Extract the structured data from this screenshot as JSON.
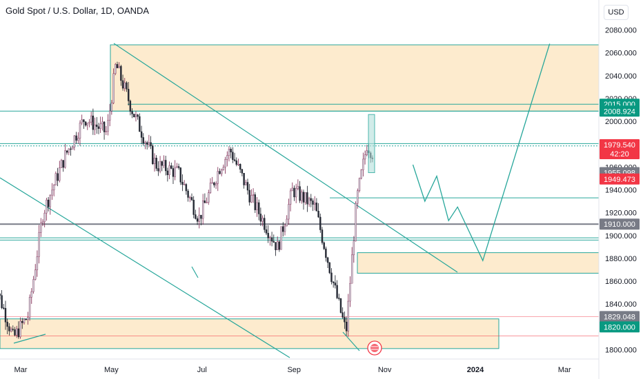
{
  "header": {
    "title": "Gold Spot / U.S. Dollar, 1D, OANDA",
    "currency": "USD"
  },
  "chart_data": {
    "type": "candlestick",
    "symbol": "Gold Spot / U.S. Dollar",
    "interval": "1D",
    "source": "OANDA",
    "ylim": [
      1792,
      2093
    ],
    "y_ticks": [
      2080,
      2060,
      2040,
      2020,
      2000,
      1980,
      1960,
      1940,
      1920,
      1900,
      1880,
      1860,
      1840,
      1820,
      1800
    ],
    "y_tick_labels": [
      "2080.000",
      "2060.000",
      "2040.000",
      "2020.000",
      "2000.000",
      "1980.000",
      "1960.000",
      "1940.000",
      "1920.000",
      "1900.000",
      "1880.000",
      "1860.000",
      "1840.000",
      "1820.000",
      "1800.000"
    ],
    "x_ticks": [
      "Mar",
      "May",
      "Jul",
      "Sep",
      "Nov",
      "2024",
      "Mar"
    ],
    "price_tags": [
      {
        "label": "2015.000",
        "value": 2015.0,
        "color": "#089981"
      },
      {
        "label": "2008.924",
        "value": 2008.924,
        "color": "#089981"
      },
      {
        "label": "1979.540",
        "value": 1979.54,
        "color": "#f23645",
        "sub": "42:20"
      },
      {
        "label": "1955.098",
        "value": 1955.098,
        "color": "#787b86"
      },
      {
        "label": "1949.473",
        "value": 1949.473,
        "color": "#f23645"
      },
      {
        "label": "1910.000",
        "value": 1910.0,
        "color": "#787b86"
      },
      {
        "label": "1829.048",
        "value": 1829.048,
        "color": "#787b86"
      },
      {
        "label": "1820.000",
        "value": 1820.0,
        "color": "#089981"
      }
    ],
    "zones": [
      {
        "from": 2008.924,
        "to": 2067
      },
      {
        "from": 1867,
        "to": 1885
      },
      {
        "from": 1801,
        "to": 1827
      }
    ],
    "horizontal_levels": [
      2015.0,
      2008.924,
      1980.5,
      1978.5,
      1933,
      1898,
      1896,
      1910.0
    ],
    "projection_path": [
      {
        "date": "2023-11-20",
        "price": 1962
      },
      {
        "date": "2023-11-28",
        "price": 1930
      },
      {
        "date": "2023-12-06",
        "price": 1952
      },
      {
        "date": "2023-12-14",
        "price": 1913
      },
      {
        "date": "2023-12-20",
        "price": 1925
      },
      {
        "date": "2024-01-06",
        "price": 1878
      },
      {
        "date": "2024-02-20",
        "price": 2068
      }
    ],
    "price_series_approx": {
      "dates": [
        "2023-02-10",
        "2023-02-24",
        "2023-03-06",
        "2023-03-16",
        "2023-03-31",
        "2023-04-13",
        "2023-04-28",
        "2023-05-04",
        "2023-05-15",
        "2023-05-31",
        "2023-06-15",
        "2023-06-29",
        "2023-07-13",
        "2023-07-20",
        "2023-08-03",
        "2023-08-21",
        "2023-08-31",
        "2023-09-15",
        "2023-09-29",
        "2023-10-06",
        "2023-10-13",
        "2023-10-20",
        "2023-10-24"
      ],
      "close": [
        1865,
        1810,
        1830,
        1920,
        1970,
        2003,
        1990,
        2050,
        2010,
        1962,
        1955,
        1915,
        1960,
        1975,
        1933,
        1889,
        1940,
        1925,
        1850,
        1815,
        1930,
        1980,
        1972
      ]
    }
  }
}
